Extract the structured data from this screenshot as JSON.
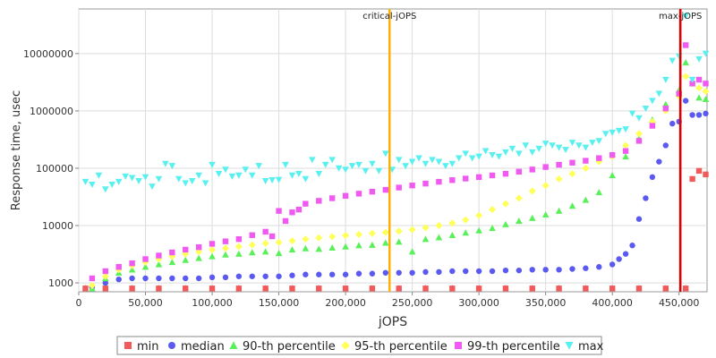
{
  "chart_data": {
    "type": "scatter",
    "xlabel": "jOPS",
    "ylabel": "Response time, usec",
    "xlim": [
      0,
      471000
    ],
    "ylim": [
      700,
      60000000
    ],
    "y_scale": "log",
    "grid": true,
    "x_ticks": [
      0,
      50000,
      100000,
      150000,
      200000,
      250000,
      300000,
      350000,
      400000,
      450000
    ],
    "x_tick_labels": [
      "0",
      "50,000",
      "100,000",
      "150,000",
      "200,000",
      "250,000",
      "300,000",
      "350,000",
      "400,000",
      "450,000"
    ],
    "y_ticks": [
      1000,
      10000,
      100000,
      1000000,
      10000000
    ],
    "y_tick_labels": [
      "1000",
      "10000",
      "100000",
      "1000000",
      "10000000"
    ],
    "legend_position": "bottom",
    "vertical_lines": [
      {
        "label": "critical-jOPS",
        "x": 233000,
        "color": "#ffb000"
      },
      {
        "label": "max-jOPS",
        "x": 451000,
        "color": "#dd0000"
      }
    ],
    "series": [
      {
        "name": "min",
        "color": "#f05a5a",
        "marker": "square",
        "x": [
          5000,
          20000,
          40000,
          60000,
          80000,
          100000,
          120000,
          140000,
          160000,
          180000,
          200000,
          220000,
          240000,
          260000,
          280000,
          300000,
          320000,
          340000,
          360000,
          380000,
          400000,
          420000,
          440000,
          455000,
          460000,
          465000,
          470000
        ],
        "y": [
          800,
          800,
          800,
          800,
          800,
          800,
          800,
          800,
          800,
          800,
          800,
          800,
          800,
          800,
          800,
          800,
          800,
          800,
          800,
          800,
          800,
          800,
          800,
          800,
          65000,
          90000,
          78000
        ]
      },
      {
        "name": "median",
        "color": "#5a5af0",
        "marker": "circle",
        "x": [
          10000,
          20000,
          30000,
          40000,
          50000,
          60000,
          70000,
          80000,
          90000,
          100000,
          110000,
          120000,
          130000,
          140000,
          150000,
          160000,
          170000,
          180000,
          190000,
          200000,
          210000,
          220000,
          230000,
          240000,
          250000,
          260000,
          270000,
          280000,
          290000,
          300000,
          310000,
          320000,
          330000,
          340000,
          350000,
          360000,
          370000,
          380000,
          390000,
          400000,
          405000,
          410000,
          415000,
          420000,
          425000,
          430000,
          435000,
          440000,
          445000,
          450000,
          455000,
          460000,
          465000,
          470000
        ],
        "y": [
          850,
          1000,
          1150,
          1200,
          1200,
          1200,
          1200,
          1200,
          1200,
          1250,
          1250,
          1300,
          1300,
          1300,
          1300,
          1350,
          1400,
          1400,
          1400,
          1400,
          1450,
          1450,
          1500,
          1500,
          1500,
          1550,
          1550,
          1600,
          1600,
          1600,
          1600,
          1650,
          1650,
          1700,
          1700,
          1700,
          1750,
          1800,
          1900,
          2100,
          2600,
          3200,
          4500,
          13000,
          30000,
          70000,
          130000,
          250000,
          600000,
          650000,
          1500000,
          850000,
          850000,
          900000
        ]
      },
      {
        "name": "90-th percentile",
        "color": "#5af05a",
        "marker": "triangle-up",
        "x": [
          10000,
          20000,
          30000,
          40000,
          50000,
          60000,
          70000,
          80000,
          90000,
          100000,
          110000,
          120000,
          130000,
          140000,
          150000,
          160000,
          170000,
          180000,
          190000,
          200000,
          210000,
          220000,
          230000,
          240000,
          250000,
          260000,
          270000,
          280000,
          290000,
          300000,
          310000,
          320000,
          330000,
          340000,
          350000,
          360000,
          370000,
          380000,
          390000,
          400000,
          410000,
          420000,
          430000,
          440000,
          450000,
          455000,
          460000,
          465000,
          470000
        ],
        "y": [
          800,
          1200,
          1500,
          1700,
          1900,
          2100,
          2300,
          2500,
          2700,
          2900,
          3100,
          3200,
          3400,
          3500,
          3300,
          3800,
          4000,
          3900,
          4100,
          4300,
          4500,
          4600,
          5000,
          5200,
          3500,
          5800,
          6200,
          6800,
          7500,
          8200,
          9000,
          10500,
          12000,
          13500,
          15500,
          18000,
          22000,
          28000,
          38000,
          75000,
          160000,
          330000,
          700000,
          1300000,
          2300000,
          7000000,
          3000000,
          1700000,
          1600000
        ]
      },
      {
        "name": "95-th percentile",
        "color": "#ffff5a",
        "marker": "diamond",
        "x": [
          10000,
          20000,
          30000,
          40000,
          50000,
          60000,
          70000,
          80000,
          90000,
          100000,
          110000,
          120000,
          130000,
          140000,
          150000,
          160000,
          170000,
          180000,
          190000,
          200000,
          210000,
          220000,
          230000,
          240000,
          250000,
          260000,
          270000,
          280000,
          290000,
          300000,
          310000,
          320000,
          330000,
          340000,
          350000,
          360000,
          370000,
          380000,
          390000,
          400000,
          410000,
          420000,
          430000,
          440000,
          450000,
          455000,
          460000,
          465000,
          470000
        ],
        "y": [
          900,
          1300,
          1700,
          2000,
          2300,
          2600,
          2900,
          3200,
          3500,
          3800,
          4000,
          4300,
          4600,
          4900,
          5100,
          5400,
          5800,
          6100,
          6400,
          6700,
          7000,
          7300,
          7600,
          8000,
          8500,
          9200,
          10000,
          11000,
          12500,
          15000,
          19000,
          24000,
          30000,
          40000,
          50000,
          65000,
          80000,
          100000,
          130000,
          160000,
          250000,
          400000,
          650000,
          1000000,
          1800000,
          4000000,
          3000000,
          2500000,
          2200000
        ]
      },
      {
        "name": "99-th percentile",
        "color": "#f05af0",
        "marker": "square",
        "x": [
          10000,
          20000,
          30000,
          40000,
          50000,
          60000,
          70000,
          80000,
          90000,
          100000,
          110000,
          120000,
          130000,
          140000,
          145000,
          150000,
          155000,
          160000,
          165000,
          170000,
          180000,
          190000,
          200000,
          210000,
          220000,
          230000,
          240000,
          250000,
          260000,
          270000,
          280000,
          290000,
          300000,
          310000,
          320000,
          330000,
          340000,
          350000,
          360000,
          370000,
          380000,
          390000,
          400000,
          410000,
          420000,
          430000,
          440000,
          450000,
          455000,
          460000,
          465000,
          470000
        ],
        "y": [
          1200,
          1600,
          1900,
          2200,
          2600,
          3000,
          3400,
          3800,
          4200,
          4800,
          5300,
          5800,
          6800,
          7800,
          6500,
          18000,
          12000,
          17000,
          19000,
          24000,
          27000,
          30000,
          33000,
          36000,
          39000,
          42000,
          46000,
          50000,
          54000,
          58000,
          62000,
          66000,
          70000,
          75000,
          80000,
          87000,
          95000,
          105000,
          115000,
          125000,
          135000,
          150000,
          170000,
          200000,
          300000,
          550000,
          1100000,
          2000000,
          14000000,
          3000000,
          3500000,
          3000000
        ]
      },
      {
        "name": "max",
        "color": "#5af0f0",
        "marker": "triangle-down",
        "x": [
          5000,
          10000,
          15000,
          20000,
          25000,
          30000,
          35000,
          40000,
          45000,
          50000,
          55000,
          60000,
          65000,
          70000,
          75000,
          80000,
          85000,
          90000,
          95000,
          100000,
          105000,
          110000,
          115000,
          120000,
          125000,
          130000,
          135000,
          140000,
          145000,
          150000,
          155000,
          160000,
          165000,
          170000,
          175000,
          180000,
          185000,
          190000,
          195000,
          200000,
          205000,
          210000,
          215000,
          220000,
          225000,
          230000,
          235000,
          240000,
          245000,
          250000,
          255000,
          260000,
          265000,
          270000,
          275000,
          280000,
          285000,
          290000,
          295000,
          300000,
          305000,
          310000,
          315000,
          320000,
          325000,
          330000,
          335000,
          340000,
          345000,
          350000,
          355000,
          360000,
          365000,
          370000,
          375000,
          380000,
          385000,
          390000,
          395000,
          400000,
          405000,
          410000,
          415000,
          420000,
          425000,
          430000,
          435000,
          440000,
          445000,
          450000,
          455000,
          460000,
          465000,
          470000
        ],
        "y": [
          58000,
          52000,
          75000,
          43000,
          52000,
          58000,
          72000,
          68000,
          60000,
          70000,
          48000,
          65000,
          120000,
          110000,
          65000,
          55000,
          60000,
          75000,
          55000,
          115000,
          80000,
          95000,
          72000,
          75000,
          95000,
          75000,
          110000,
          60000,
          62000,
          63000,
          115000,
          75000,
          80000,
          65000,
          140000,
          80000,
          115000,
          140000,
          100000,
          95000,
          110000,
          115000,
          90000,
          120000,
          90000,
          180000,
          95000,
          140000,
          110000,
          130000,
          150000,
          120000,
          140000,
          130000,
          110000,
          120000,
          150000,
          180000,
          150000,
          160000,
          200000,
          170000,
          160000,
          190000,
          220000,
          180000,
          250000,
          190000,
          220000,
          270000,
          250000,
          230000,
          210000,
          280000,
          250000,
          230000,
          280000,
          300000,
          400000,
          420000,
          450000,
          480000,
          900000,
          750000,
          1100000,
          1500000,
          2000000,
          3500000,
          7500000,
          9000000,
          45000000,
          3500000,
          8000000,
          10000000
        ]
      }
    ]
  }
}
